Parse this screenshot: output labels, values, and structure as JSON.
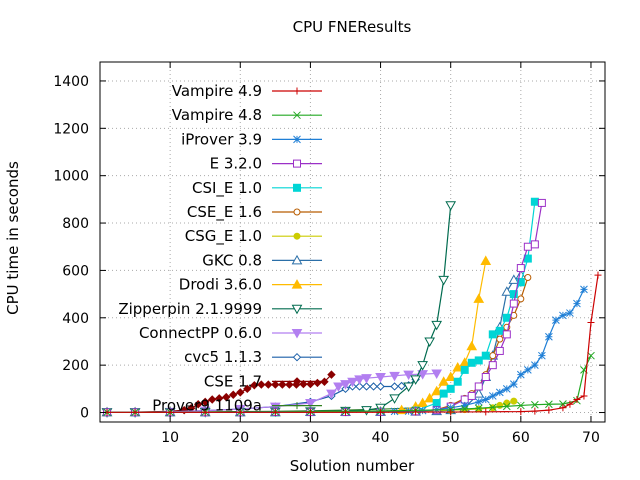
{
  "chart_data": {
    "type": "line",
    "title": "CPU FNEResults",
    "xlabel": "Solution number",
    "ylabel": "CPU time in seconds",
    "xlim": [
      0,
      72
    ],
    "ylim": [
      -40,
      1480
    ],
    "xticks": [
      10,
      20,
      30,
      40,
      50,
      60,
      70
    ],
    "yticks": [
      0,
      200,
      400,
      600,
      800,
      1000,
      1200,
      1400
    ],
    "grid": true,
    "legend_position": "top-left",
    "series": [
      {
        "name": "Vampire 4.9",
        "color": "#cc0000",
        "marker": "plus",
        "x": [
          1,
          5,
          10,
          15,
          20,
          25,
          30,
          35,
          40,
          45,
          50,
          55,
          60,
          62,
          64,
          66,
          67,
          68,
          69,
          70,
          71
        ],
        "y": [
          1,
          1,
          1,
          1,
          1,
          1,
          1,
          1,
          1,
          2,
          2,
          3,
          4,
          6,
          10,
          20,
          35,
          55,
          70,
          380,
          580
        ]
      },
      {
        "name": "Vampire 4.8",
        "color": "#22a822",
        "marker": "cross",
        "x": [
          1,
          5,
          10,
          15,
          20,
          25,
          30,
          35,
          40,
          45,
          50,
          52,
          54,
          56,
          58,
          60,
          62,
          64,
          66,
          68,
          69,
          70
        ],
        "y": [
          1,
          1,
          1,
          2,
          2,
          3,
          4,
          5,
          7,
          9,
          12,
          15,
          18,
          22,
          26,
          30,
          33,
          35,
          36,
          50,
          180,
          240
        ]
      },
      {
        "name": "iProver 3.9",
        "color": "#1f7fd6",
        "marker": "star",
        "x": [
          1,
          5,
          10,
          15,
          20,
          25,
          30,
          35,
          40,
          42,
          44,
          46,
          48,
          50,
          52,
          54,
          55,
          56,
          57,
          58,
          59,
          60,
          61,
          62,
          63,
          64,
          65,
          66,
          67,
          68,
          69
        ],
        "y": [
          1,
          1,
          1,
          2,
          2,
          3,
          3,
          4,
          4,
          5,
          6,
          8,
          12,
          20,
          30,
          45,
          55,
          70,
          85,
          100,
          120,
          160,
          180,
          200,
          240,
          320,
          390,
          410,
          420,
          460,
          520
        ]
      },
      {
        "name": "E 3.2.0",
        "color": "#9b30c7",
        "marker": "square-open",
        "x": [
          1,
          5,
          10,
          15,
          20,
          25,
          30,
          35,
          40,
          45,
          48,
          50,
          52,
          53,
          54,
          55,
          56,
          57,
          58,
          59,
          60,
          61,
          62,
          63
        ],
        "y": [
          1,
          1,
          1,
          1,
          1,
          2,
          2,
          2,
          3,
          5,
          10,
          25,
          55,
          70,
          110,
          150,
          200,
          260,
          330,
          460,
          610,
          700,
          710,
          885
        ]
      },
      {
        "name": "CSI_E 1.0",
        "color": "#00d5d5",
        "marker": "square-filled",
        "x": [
          1,
          5,
          10,
          15,
          20,
          25,
          30,
          35,
          40,
          45,
          48,
          49,
          50,
          51,
          52,
          53,
          54,
          55,
          56,
          57,
          58,
          59,
          60,
          61,
          62
        ],
        "y": [
          1,
          1,
          1,
          1,
          1,
          1,
          2,
          2,
          3,
          8,
          40,
          80,
          100,
          130,
          180,
          210,
          220,
          240,
          330,
          345,
          400,
          500,
          550,
          650,
          890
        ]
      },
      {
        "name": "CSE_E 1.6",
        "color": "#b85c00",
        "marker": "circle-open",
        "x": [
          1,
          5,
          10,
          15,
          20,
          25,
          30,
          35,
          40,
          45,
          48,
          50,
          52,
          53,
          54,
          55,
          56,
          57,
          58,
          59,
          60,
          61
        ],
        "y": [
          1,
          1,
          1,
          1,
          1,
          2,
          2,
          3,
          4,
          6,
          12,
          30,
          60,
          80,
          110,
          160,
          240,
          310,
          360,
          410,
          480,
          570
        ]
      },
      {
        "name": "CSG_E 1.0",
        "color": "#cccc00",
        "marker": "pentagon-filled",
        "x": [
          1,
          5,
          10,
          15,
          20,
          25,
          30,
          35,
          40,
          45,
          48,
          50,
          52,
          54,
          56,
          57,
          58,
          59
        ],
        "y": [
          1,
          1,
          1,
          1,
          1,
          1,
          2,
          2,
          3,
          5,
          8,
          10,
          12,
          15,
          20,
          30,
          40,
          48
        ]
      },
      {
        "name": "GKC 0.8",
        "color": "#2b6fa8",
        "marker": "triangle-open",
        "x": [
          1,
          5,
          10,
          15,
          20,
          25,
          30,
          35,
          40,
          45,
          48,
          50,
          52,
          54,
          55,
          56,
          57,
          58,
          59,
          60
        ],
        "y": [
          1,
          1,
          1,
          1,
          1,
          1,
          2,
          2,
          3,
          4,
          6,
          10,
          20,
          80,
          150,
          240,
          360,
          510,
          560,
          580
        ]
      },
      {
        "name": "Drodi 3.6.0",
        "color": "#ffbb00",
        "marker": "triangle-filled",
        "x": [
          1,
          5,
          10,
          15,
          20,
          25,
          30,
          35,
          40,
          43,
          45,
          46,
          47,
          48,
          49,
          50,
          51,
          52,
          53,
          54,
          55
        ],
        "y": [
          1,
          1,
          1,
          1,
          1,
          1,
          2,
          2,
          4,
          10,
          25,
          40,
          60,
          90,
          130,
          150,
          190,
          210,
          280,
          480,
          640
        ]
      },
      {
        "name": "Zipperpin 2.1.9999",
        "color": "#006b4f",
        "marker": "triangle-down-open",
        "x": [
          1,
          5,
          10,
          15,
          20,
          25,
          30,
          35,
          38,
          40,
          42,
          44,
          45,
          46,
          47,
          48,
          49,
          50
        ],
        "y": [
          1,
          1,
          1,
          2,
          3,
          4,
          5,
          7,
          10,
          20,
          60,
          110,
          140,
          200,
          300,
          370,
          560,
          875
        ]
      },
      {
        "name": "ConnectPP 0.6.0",
        "color": "#b27ff0",
        "marker": "triangle-down-filled",
        "x": [
          1,
          5,
          10,
          15,
          20,
          25,
          30,
          33,
          34,
          35,
          36,
          37,
          38,
          40,
          42,
          44,
          46,
          48
        ],
        "y": [
          1,
          1,
          3,
          8,
          15,
          25,
          40,
          80,
          110,
          120,
          130,
          140,
          145,
          150,
          155,
          160,
          162,
          165
        ]
      },
      {
        "name": "cvc5 1.1.3",
        "color": "#1a5fa8",
        "marker": "diamond-open",
        "x": [
          1,
          5,
          10,
          15,
          20,
          25,
          30,
          33,
          35,
          36,
          37,
          38,
          39,
          40,
          42,
          43,
          44,
          45
        ],
        "y": [
          1,
          1,
          3,
          8,
          15,
          25,
          45,
          70,
          100,
          110,
          110,
          110,
          110,
          110,
          110,
          112,
          115,
          140
        ]
      },
      {
        "name": "CSE 1.7",
        "color": "#8b0000",
        "marker": "diamond-filled",
        "x": [
          1,
          5,
          10,
          12,
          13,
          14,
          15,
          16,
          17,
          18,
          19,
          20,
          21,
          22,
          23,
          24,
          25,
          26,
          27,
          28,
          29,
          30,
          31,
          32,
          33
        ],
        "y": [
          1,
          2,
          5,
          10,
          18,
          35,
          45,
          55,
          60,
          65,
          75,
          85,
          100,
          115,
          118,
          118,
          118,
          118,
          118,
          118,
          120,
          120,
          125,
          130,
          160
        ]
      },
      {
        "name": "Prover9 1109a",
        "color": "#2f7f1f",
        "marker": "plus",
        "x": [
          1,
          5,
          10,
          15,
          20,
          25,
          30,
          35,
          40,
          45
        ],
        "y": [
          1,
          1,
          2,
          3,
          4,
          5,
          7,
          10,
          14,
          20
        ]
      }
    ]
  }
}
